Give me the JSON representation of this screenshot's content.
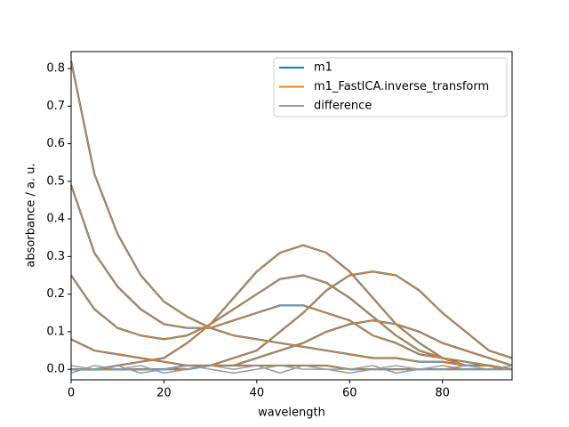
{
  "chart_data": {
    "type": "line",
    "xlabel": "wavelength",
    "ylabel": "absorbance / a. u.",
    "x": [
      0,
      5,
      10,
      15,
      20,
      25,
      30,
      35,
      40,
      45,
      50,
      55,
      60,
      65,
      70,
      75,
      80,
      85,
      90,
      95
    ],
    "xlim": [
      0,
      95
    ],
    "ylim": [
      -0.028,
      0.845
    ],
    "xticks": [
      0,
      20,
      40,
      60,
      80
    ],
    "yticks": [
      {
        "value": 0,
        "label": "0.0"
      },
      0.1,
      0.2,
      0.3,
      0.4,
      0.5,
      0.6,
      0.7,
      0.8
    ],
    "legend": "upper right",
    "series": [
      {
        "name": "m1",
        "color": "#1f77b4",
        "lines": [
          [
            0.82,
            0.52,
            0.36,
            0.25,
            0.18,
            0.14,
            0.11,
            0.09,
            0.08,
            0.07,
            0.06,
            0.05,
            0.04,
            0.03,
            0.03,
            0.02,
            0.02,
            0.01,
            0.01,
            0.0
          ],
          [
            0.49,
            0.31,
            0.22,
            0.16,
            0.12,
            0.11,
            0.11,
            0.13,
            0.15,
            0.17,
            0.17,
            0.15,
            0.13,
            0.09,
            0.07,
            0.04,
            0.03,
            0.01,
            0.01,
            0.0
          ],
          [
            0.25,
            0.16,
            0.11,
            0.09,
            0.08,
            0.09,
            0.12,
            0.16,
            0.2,
            0.24,
            0.25,
            0.23,
            0.19,
            0.14,
            0.09,
            0.05,
            0.03,
            0.01,
            0.01,
            0.0
          ],
          [
            0.0,
            0.0,
            0.01,
            0.02,
            0.03,
            0.07,
            0.12,
            0.19,
            0.26,
            0.31,
            0.33,
            0.31,
            0.26,
            0.19,
            0.12,
            0.07,
            0.03,
            0.02,
            0.01,
            0.0
          ],
          [
            0.0,
            0.0,
            0.0,
            0.0,
            0.0,
            0.01,
            0.01,
            0.03,
            0.05,
            0.1,
            0.15,
            0.21,
            0.25,
            0.26,
            0.25,
            0.21,
            0.15,
            0.1,
            0.05,
            0.03
          ],
          [
            0.0,
            0.0,
            0.0,
            0.0,
            0.0,
            0.0,
            0.01,
            0.01,
            0.03,
            0.05,
            0.07,
            0.1,
            0.12,
            0.13,
            0.12,
            0.1,
            0.07,
            0.05,
            0.03,
            0.01
          ],
          [
            0.08,
            0.05,
            0.04,
            0.03,
            0.02,
            0.01,
            0.01,
            0.01,
            0.01,
            0.01,
            0.01,
            0.01,
            0.0,
            0.0,
            0.0,
            0.0,
            0.0,
            0.0,
            0.0,
            0.0
          ]
        ]
      },
      {
        "name": "m1_FastICA.inverse_transform",
        "color": "#ff7f0e",
        "lines": [
          [
            0.82,
            0.52,
            0.36,
            0.25,
            0.18,
            0.14,
            0.11,
            0.09,
            0.08,
            0.07,
            0.06,
            0.05,
            0.04,
            0.03,
            0.03,
            0.02,
            0.02,
            0.01,
            0.01,
            0.0
          ],
          [
            0.49,
            0.31,
            0.22,
            0.16,
            0.12,
            0.11,
            0.11,
            0.13,
            0.15,
            0.17,
            0.17,
            0.15,
            0.13,
            0.09,
            0.07,
            0.04,
            0.03,
            0.01,
            0.01,
            0.0
          ],
          [
            0.25,
            0.16,
            0.11,
            0.09,
            0.08,
            0.09,
            0.12,
            0.16,
            0.2,
            0.24,
            0.25,
            0.23,
            0.19,
            0.14,
            0.09,
            0.05,
            0.03,
            0.01,
            0.01,
            0.0
          ],
          [
            0.0,
            0.0,
            0.01,
            0.02,
            0.03,
            0.07,
            0.12,
            0.19,
            0.26,
            0.31,
            0.33,
            0.31,
            0.26,
            0.19,
            0.12,
            0.07,
            0.03,
            0.02,
            0.01,
            0.0
          ],
          [
            0.0,
            0.0,
            0.0,
            0.0,
            0.0,
            0.01,
            0.01,
            0.03,
            0.05,
            0.1,
            0.15,
            0.21,
            0.25,
            0.26,
            0.25,
            0.21,
            0.15,
            0.1,
            0.05,
            0.03
          ],
          [
            0.0,
            0.0,
            0.0,
            0.0,
            0.0,
            0.0,
            0.01,
            0.01,
            0.03,
            0.05,
            0.07,
            0.1,
            0.12,
            0.13,
            0.12,
            0.1,
            0.07,
            0.05,
            0.03,
            0.01
          ],
          [
            0.08,
            0.05,
            0.04,
            0.03,
            0.02,
            0.01,
            0.01,
            0.01,
            0.01,
            0.01,
            0.01,
            0.01,
            0.0,
            0.0,
            0.0,
            0.0,
            0.0,
            0.0,
            0.0,
            0.0
          ]
        ]
      },
      {
        "name": "difference",
        "color": "#999999",
        "lines": [
          [
            0.01,
            0.0,
            0.01,
            -0.01,
            0.0,
            0.01,
            0.0,
            -0.01,
            0.0,
            0.01,
            0.0,
            0.0,
            -0.01,
            0.0,
            0.01,
            0.0,
            0.0,
            0.01,
            0.0,
            0.0
          ],
          [
            -0.01,
            0.01,
            0.0,
            0.01,
            -0.01,
            0.0,
            0.01,
            0.0,
            0.01,
            -0.01,
            0.01,
            0.0,
            0.0,
            0.01,
            -0.01,
            0.0,
            0.01,
            0.0,
            0.0,
            0.01
          ]
        ]
      }
    ]
  }
}
